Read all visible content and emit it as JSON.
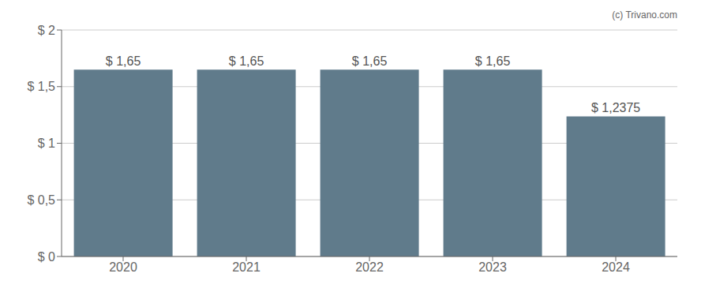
{
  "chart_data": {
    "type": "bar",
    "categories": [
      "2020",
      "2021",
      "2022",
      "2023",
      "2024"
    ],
    "values": [
      1.65,
      1.65,
      1.65,
      1.65,
      1.2375
    ],
    "value_labels": [
      "$ 1,65",
      "$ 1,65",
      "$ 1,65",
      "$ 1,65",
      "$ 1,2375"
    ],
    "color": "#607b8b",
    "ylim": [
      0,
      2.0
    ],
    "yticks": [
      {
        "value": 0,
        "label": "$ 0"
      },
      {
        "value": 0.5,
        "label": "$ 0,5"
      },
      {
        "value": 1.0,
        "label": "$ 1"
      },
      {
        "value": 1.5,
        "label": "$ 1,5"
      },
      {
        "value": 2.0,
        "label": "$ 2"
      }
    ],
    "grid": true,
    "data_labels": true,
    "annotations": [
      "(c) Trivano.com"
    ]
  }
}
